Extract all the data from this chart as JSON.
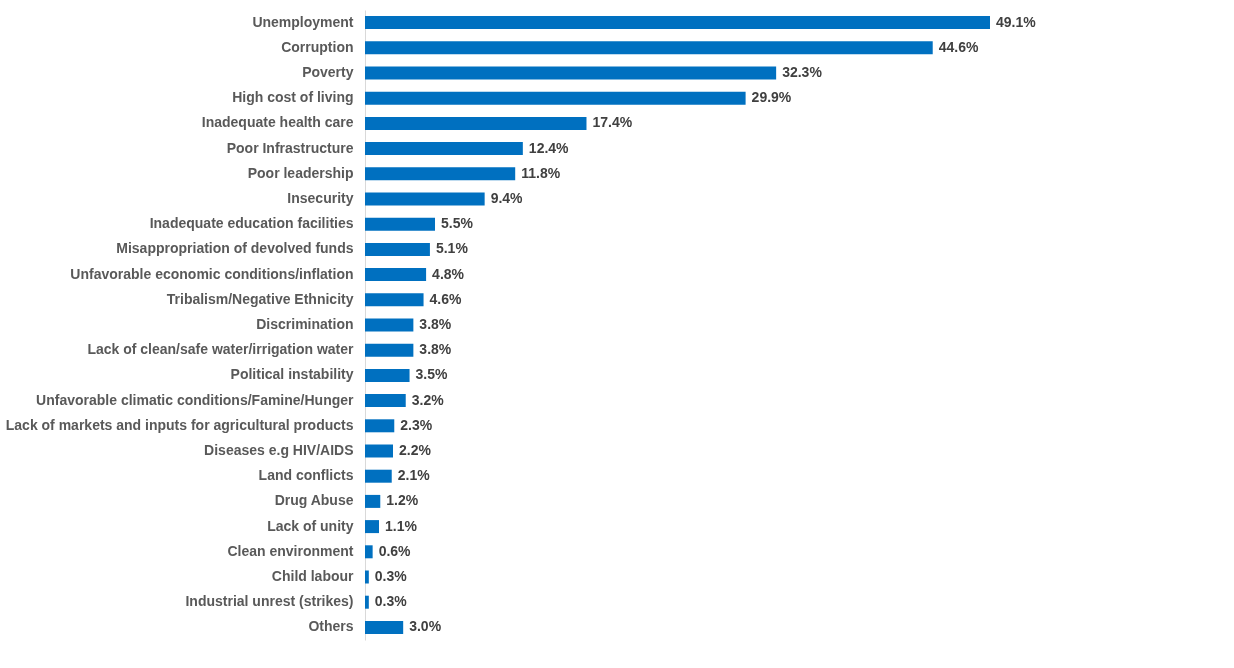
{
  "chart_data": {
    "type": "bar",
    "orientation": "horizontal",
    "color": "#0070c0",
    "categories": [
      "Unemployment",
      "Corruption",
      "Poverty",
      "High cost of living",
      "Inadequate health care",
      "Poor Infrastructure",
      "Poor leadership",
      "Insecurity",
      "Inadequate education facilities",
      "Misappropriation of devolved funds",
      "Unfavorable economic conditions/inflation",
      "Tribalism/Negative Ethnicity",
      "Discrimination",
      "Lack of clean/safe water/irrigation water",
      "Political instability",
      "Unfavorable climatic conditions/Famine/Hunger",
      "Lack of markets and inputs for agricultural products",
      "Diseases e.g HIV/AIDS",
      "Land conflicts",
      "Drug Abuse",
      "Lack of unity",
      "Clean environment",
      "Child labour",
      "Industrial unrest (strikes)",
      "Others"
    ],
    "values": [
      49.1,
      44.6,
      32.3,
      29.9,
      17.4,
      12.4,
      11.8,
      9.4,
      5.5,
      5.1,
      4.8,
      4.6,
      3.8,
      3.8,
      3.5,
      3.2,
      2.3,
      2.2,
      2.1,
      1.2,
      1.1,
      0.6,
      0.3,
      0.3,
      3.0
    ],
    "value_labels": [
      "49.1%",
      "44.6%",
      "32.3%",
      "29.9%",
      "17.4%",
      "12.4%",
      "11.8%",
      "9.4%",
      "5.5%",
      "5.1%",
      "4.8%",
      "4.6%",
      "3.8%",
      "3.8%",
      "3.5%",
      "3.2%",
      "2.3%",
      "2.2%",
      "2.1%",
      "1.2%",
      "1.1%",
      "0.6%",
      "0.3%",
      "0.3%",
      "3.0%"
    ]
  }
}
